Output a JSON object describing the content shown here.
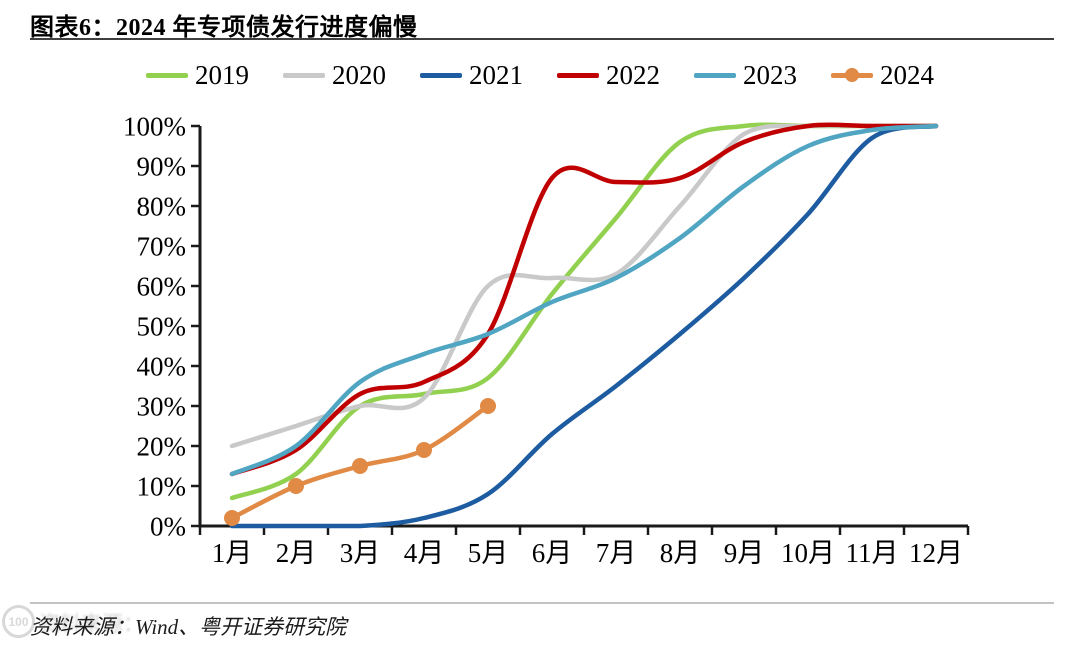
{
  "header": {
    "title": "图表6：2024 年专项债发行进度偏慢"
  },
  "footer": {
    "source_label": "资料来源：",
    "source_text": "Wind、粤开证券研究院",
    "watermark": "100"
  },
  "chart_data": {
    "type": "line",
    "title": "2024 年专项债发行进度偏慢",
    "xlabel": "",
    "ylabel": "",
    "unit": "%",
    "ylim": [
      0,
      100
    ],
    "grid": false,
    "legend_position": "top",
    "categories": [
      "1月",
      "2月",
      "3月",
      "4月",
      "5月",
      "6月",
      "7月",
      "8月",
      "9月",
      "10月",
      "11月",
      "12月"
    ],
    "y_tick_labels": [
      "0%",
      "10%",
      "20%",
      "30%",
      "40%",
      "50%",
      "60%",
      "70%",
      "80%",
      "90%",
      "100%"
    ],
    "series": [
      {
        "name": "2019",
        "color": "#92D050",
        "marker": false,
        "values": [
          7,
          13,
          30,
          33,
          37,
          58,
          77,
          96,
          100,
          100,
          100,
          100
        ]
      },
      {
        "name": "2020",
        "color": "#C9C9C9",
        "marker": false,
        "values": [
          20,
          25,
          30,
          32,
          60,
          62,
          63,
          80,
          98,
          100,
          100,
          100
        ]
      },
      {
        "name": "2021",
        "color": "#1D5CA0",
        "marker": false,
        "values": [
          0,
          0,
          0,
          2,
          8,
          23,
          35,
          48,
          62,
          78,
          97,
          100
        ]
      },
      {
        "name": "2022",
        "color": "#C00000",
        "marker": false,
        "values": [
          13,
          19,
          33,
          36,
          48,
          87,
          86,
          87,
          96,
          100,
          100,
          100
        ]
      },
      {
        "name": "2023",
        "color": "#4FA5C2",
        "marker": false,
        "values": [
          13,
          20,
          36,
          43,
          48,
          56,
          62,
          72,
          85,
          95,
          99,
          100
        ]
      },
      {
        "name": "2024",
        "color": "#E08A45",
        "marker": true,
        "values": [
          2,
          10,
          15,
          19,
          30
        ]
      }
    ]
  }
}
